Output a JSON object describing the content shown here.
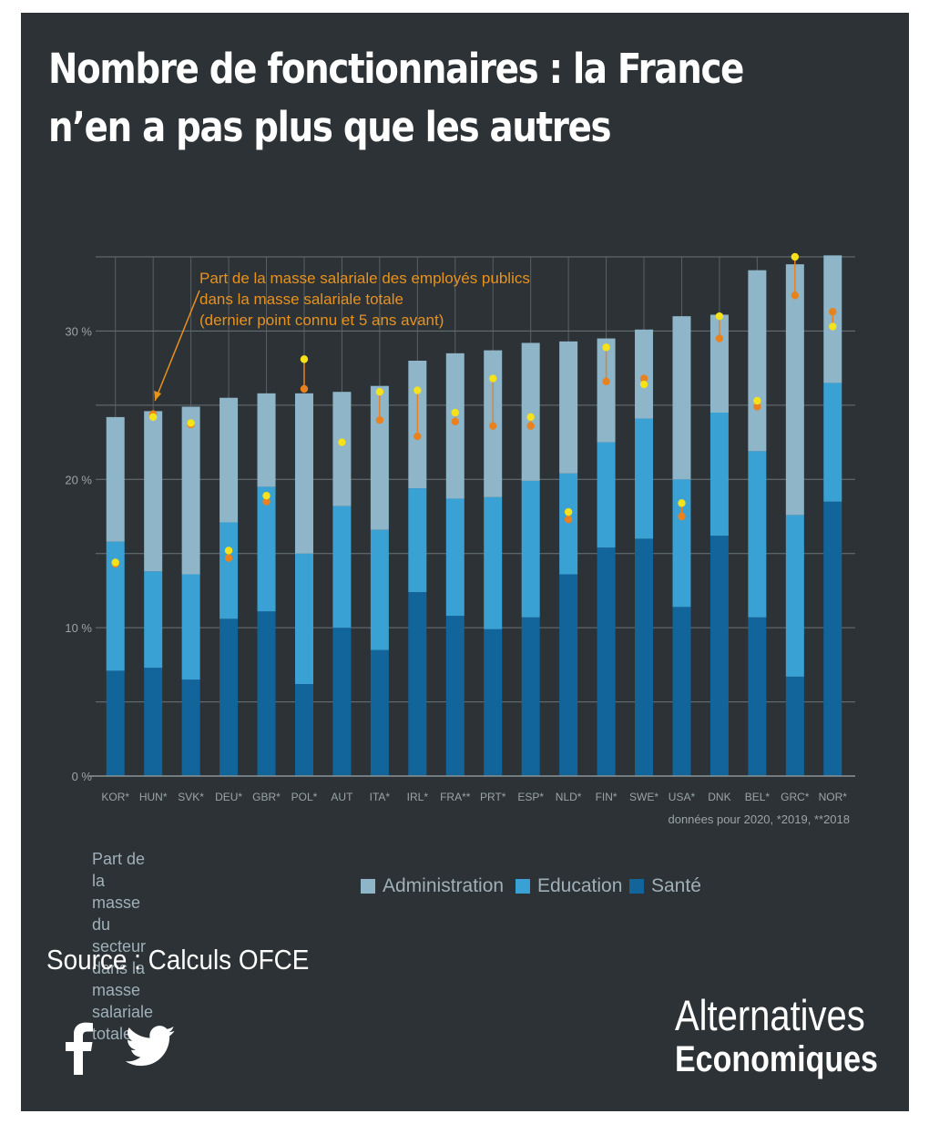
{
  "header": {
    "title": "Nombre de fonctionnaires : la France n’en a pas plus que les autres"
  },
  "colors": {
    "background": "#2c3235",
    "administration": "#8fb5c9",
    "education": "#3aa1d4",
    "sante": "#11659b",
    "recent": "#f5e21a",
    "previous": "#e8821e",
    "annotation": "#e8921e"
  },
  "chart_data": {
    "type": "bar",
    "stacked": true,
    "categories": [
      "KOR*",
      "HUN*",
      "SVK*",
      "DEU*",
      "GBR*",
      "POL*",
      "AUT",
      "ITA*",
      "IRL*",
      "FRA**",
      "PRT*",
      "ESP*",
      "NLD*",
      "FIN*",
      "SWE*",
      "USA*",
      "DNK",
      "BEL*",
      "GRC*",
      "NOR*"
    ],
    "series": [
      {
        "name": "Santé",
        "values": [
          7.1,
          7.3,
          6.5,
          10.6,
          11.1,
          6.2,
          10.0,
          8.5,
          12.4,
          10.8,
          9.9,
          10.7,
          13.6,
          15.4,
          16.0,
          11.4,
          16.2,
          10.7,
          6.7,
          18.5
        ]
      },
      {
        "name": "Education",
        "values": [
          8.7,
          6.5,
          7.1,
          6.5,
          8.4,
          8.8,
          8.2,
          8.1,
          7.0,
          7.9,
          8.9,
          9.2,
          6.8,
          7.1,
          8.1,
          8.6,
          8.3,
          11.2,
          10.9,
          8.0
        ]
      },
      {
        "name": "Administration",
        "values": [
          8.4,
          10.8,
          11.3,
          8.4,
          6.3,
          10.8,
          7.7,
          9.7,
          8.6,
          9.8,
          9.9,
          9.3,
          8.9,
          7.0,
          6.0,
          11.0,
          6.6,
          12.2,
          16.9,
          8.6
        ]
      }
    ],
    "salary_share": {
      "label": "Part de la masse salariale des employés publics\ndans la masse salariale totale\n(dernier point connu et 5 ans avant)",
      "latest": [
        14.4,
        24.2,
        23.8,
        15.2,
        18.9,
        28.1,
        22.5,
        25.9,
        26.0,
        24.5,
        26.8,
        24.2,
        17.8,
        28.9,
        26.4,
        18.4,
        31.0,
        25.3,
        35.0,
        30.3
      ],
      "five_years_before": [
        14.3,
        24.4,
        23.7,
        14.7,
        18.5,
        26.1,
        22.5,
        24.0,
        22.9,
        23.9,
        23.6,
        23.6,
        17.3,
        26.6,
        26.8,
        17.5,
        29.5,
        24.9,
        32.4,
        31.3
      ]
    },
    "title": "Nombre de fonctionnaires : la France n’en a pas plus que les autres",
    "xlabel": "",
    "ylabel": "",
    "ylim": [
      0,
      35
    ],
    "yticks": [
      0,
      10,
      20,
      30
    ],
    "ytick_labels": [
      "0 %",
      "10 %",
      "20 %",
      "30 %"
    ],
    "grid": true,
    "note": "données pour 2020, *2019, **2018"
  },
  "legend": {
    "title": "Part de la masse du secteur\ndans la masse salariale totale",
    "items": [
      {
        "label": "Administration",
        "color": "#8fb5c9"
      },
      {
        "label": "Education",
        "color": "#3aa1d4"
      },
      {
        "label": "Santé",
        "color": "#11659b"
      }
    ]
  },
  "source": "Source : Calculs OFCE",
  "brand": {
    "line1": "Alternatives",
    "line2": "Economiques"
  },
  "social": {
    "facebook": "facebook-icon",
    "twitter": "twitter-icon"
  }
}
